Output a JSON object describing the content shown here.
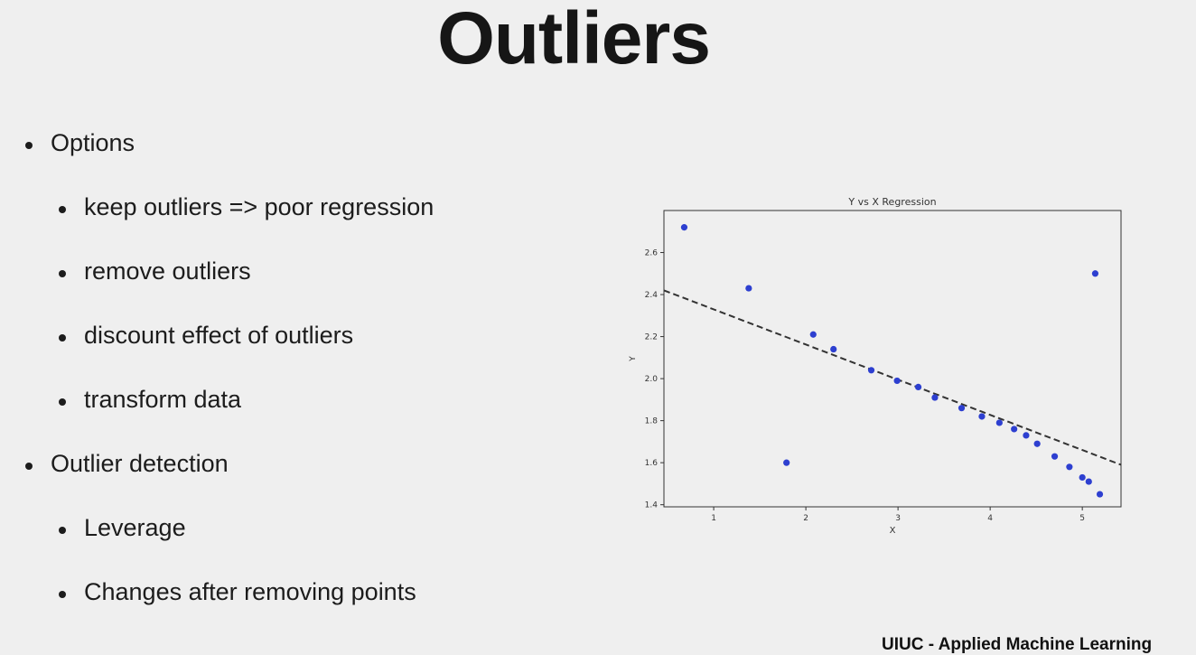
{
  "slide": {
    "title": "Outliers",
    "footer": "UIUC - Applied Machine Learning"
  },
  "bullets": [
    {
      "text": "Options",
      "level": 1
    },
    {
      "text": "keep outliers => poor regression",
      "level": 2
    },
    {
      "text": "remove outliers",
      "level": 2
    },
    {
      "text": "discount effect of outliers",
      "level": 2
    },
    {
      "text": "transform data",
      "level": 2
    },
    {
      "text": "Outlier detection",
      "level": 1
    },
    {
      "text": "Leverage",
      "level": 2
    },
    {
      "text": "Changes after removing points",
      "level": 2
    }
  ],
  "chart_data": {
    "type": "scatter",
    "title": "Y vs X Regression",
    "xlabel": "X",
    "ylabel": "Y",
    "xlim": [
      0.46,
      5.42
    ],
    "ylim": [
      1.39,
      2.8
    ],
    "xticks": [
      1,
      2,
      3,
      4,
      5
    ],
    "yticks": [
      1.4,
      1.6,
      1.8,
      2.0,
      2.2,
      2.4,
      2.6
    ],
    "grid": false,
    "point_color": "#2d3fd0",
    "line_color": "#333333",
    "series": [
      {
        "x": [
          0.68,
          1.38,
          1.79,
          2.08,
          2.3,
          2.71,
          2.99,
          3.22,
          3.4,
          3.69,
          3.91,
          4.1,
          4.26,
          4.39,
          4.51,
          4.7,
          4.86,
          5.0,
          5.07,
          5.14,
          5.19
        ],
        "y": [
          2.72,
          2.43,
          1.6,
          2.21,
          2.14,
          2.04,
          1.99,
          1.96,
          1.91,
          1.86,
          1.82,
          1.79,
          1.76,
          1.73,
          1.69,
          1.63,
          1.58,
          1.53,
          1.51,
          2.5,
          1.45
        ]
      }
    ],
    "regression_line": {
      "style": "dashed",
      "x": [
        0.46,
        5.42
      ],
      "y": [
        2.42,
        1.59
      ]
    }
  }
}
